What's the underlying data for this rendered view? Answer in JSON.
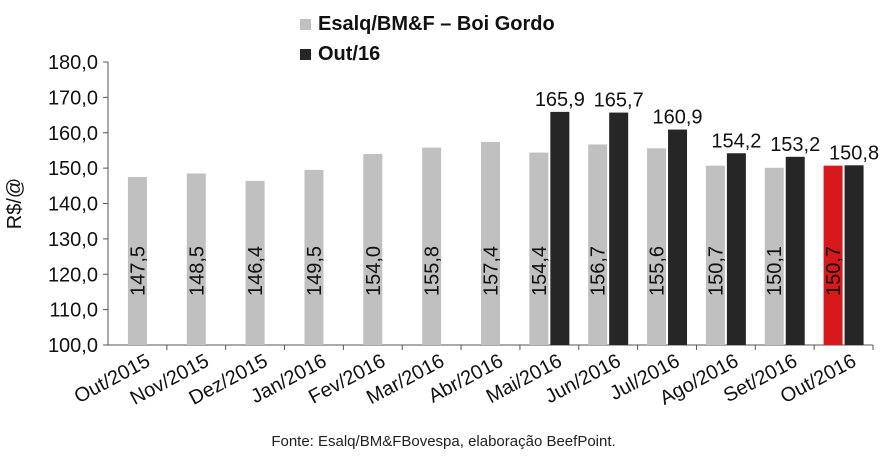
{
  "chart_data": {
    "type": "bar",
    "ylabel": "R$/@",
    "ylim": [
      100,
      180
    ],
    "yticks": [
      "100,0",
      "110,0",
      "120,0",
      "130,0",
      "140,0",
      "150,0",
      "160,0",
      "170,0",
      "180,0"
    ],
    "categories": [
      "Out/2015",
      "Nov/2015",
      "Dez/2015",
      "Jan/2016",
      "Fev/2016",
      "Mar/2016",
      "Abr/2016",
      "Mai/2016",
      "Jun/2016",
      "Jul/2016",
      "Ago/2016",
      "Set/2016",
      "Out/2016"
    ],
    "series": [
      {
        "name": "Esalq/BM&F – Boi Gordo",
        "color": "#c0c0c0",
        "values": [
          147.5,
          148.5,
          146.4,
          149.5,
          154.0,
          155.8,
          157.4,
          154.4,
          156.7,
          155.6,
          150.7,
          150.1,
          150.7
        ],
        "labels": [
          "147,5",
          "148,5",
          "146,4",
          "149,5",
          "154,0",
          "155,8",
          "157,4",
          "154,4",
          "156,7",
          "155,6",
          "150,7",
          "150,1",
          "150,7"
        ],
        "highlight_index": 12,
        "highlight_color": "#d7191c"
      },
      {
        "name": "Out/16",
        "color": "#262626",
        "values": [
          null,
          null,
          null,
          null,
          null,
          null,
          null,
          165.9,
          165.7,
          160.9,
          154.2,
          153.2,
          150.8
        ],
        "labels": [
          null,
          null,
          null,
          null,
          null,
          null,
          null,
          "165,9",
          "165,7",
          "160,9",
          "154,2",
          "153,2",
          "150,8"
        ]
      }
    ],
    "legend_position": "top-center",
    "grid": false
  },
  "source": "Fonte: Esalq/BM&FBovespa, elaboração BeefPoint."
}
